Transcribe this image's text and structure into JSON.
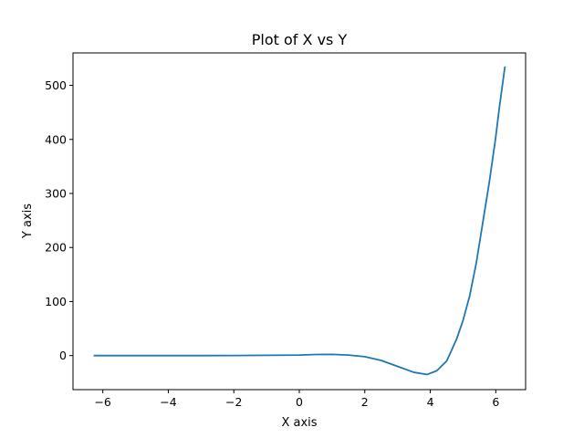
{
  "chart_data": {
    "type": "line",
    "title": "Plot of X vs Y",
    "xlabel": "X axis",
    "ylabel": "Y axis",
    "xlim": [
      -6.91,
      6.91
    ],
    "ylim": [
      -63,
      560
    ],
    "grid": false,
    "legend": "none",
    "x_ticks": [
      -6,
      -4,
      -2,
      0,
      2,
      4,
      6
    ],
    "x_tick_labels": [
      "−6",
      "−4",
      "−2",
      "0",
      "2",
      "4",
      "6"
    ],
    "y_ticks": [
      0,
      100,
      200,
      300,
      400,
      500
    ],
    "y_tick_labels": [
      "0",
      "100",
      "200",
      "300",
      "400",
      "500"
    ],
    "series": [
      {
        "color": "#1f77b4",
        "x": [
          -6.28,
          -5.0,
          -4.0,
          -3.0,
          -2.0,
          -1.0,
          0.0,
          0.5,
          1.0,
          1.5,
          2.0,
          2.5,
          3.0,
          3.5,
          3.9,
          4.2,
          4.5,
          4.8,
          5.0,
          5.2,
          5.4,
          5.6,
          5.8,
          6.0,
          6.1,
          6.28
        ],
        "y": [
          0.0,
          0.0,
          0.0,
          0.0,
          0.1,
          0.5,
          1.0,
          2.0,
          2.2,
          1.0,
          -2.0,
          -9.0,
          -20.0,
          -31.0,
          -35.0,
          -28.0,
          -10.0,
          30.0,
          65.0,
          110.0,
          170.0,
          245.0,
          320.0,
          405.0,
          455.0,
          535.0
        ]
      }
    ]
  }
}
